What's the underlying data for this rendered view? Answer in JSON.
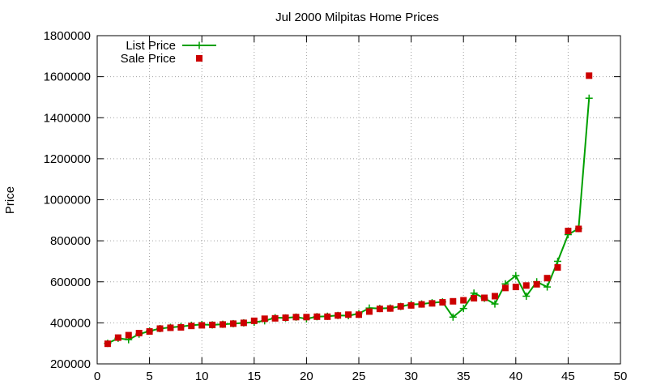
{
  "chart_data": {
    "type": "line",
    "title": "Jul 2000 Milpitas Home Prices",
    "xlabel": "",
    "ylabel": "Price",
    "xlim": [
      0,
      50
    ],
    "ylim": [
      200000,
      1800000
    ],
    "xticks": [
      0,
      5,
      10,
      15,
      20,
      25,
      30,
      35,
      40,
      45,
      50
    ],
    "yticks": [
      200000,
      400000,
      600000,
      800000,
      1000000,
      1200000,
      1400000,
      1600000,
      1800000
    ],
    "grid": true,
    "legend_position": "top-left",
    "series": [
      {
        "name": "List Price",
        "style": "line-with-plus-markers",
        "color": "#00a000",
        "x": [
          1,
          2,
          3,
          4,
          5,
          6,
          7,
          8,
          9,
          10,
          11,
          12,
          13,
          14,
          15,
          16,
          17,
          18,
          19,
          20,
          21,
          22,
          23,
          24,
          25,
          26,
          27,
          28,
          29,
          30,
          31,
          32,
          33,
          34,
          35,
          36,
          37,
          38,
          39,
          40,
          41,
          42,
          43,
          44,
          45,
          46,
          47
        ],
        "y": [
          300000,
          325000,
          318000,
          345000,
          360000,
          372000,
          378000,
          382000,
          388000,
          392000,
          390000,
          393000,
          396000,
          400000,
          403000,
          410000,
          425000,
          424000,
          428000,
          420000,
          430000,
          432000,
          436000,
          435000,
          445000,
          472000,
          470000,
          472000,
          480000,
          490000,
          492000,
          498000,
          502000,
          428000,
          470000,
          545000,
          520000,
          492000,
          590000,
          630000,
          530000,
          600000,
          575000,
          700000,
          830000,
          860000,
          1495000
        ]
      },
      {
        "name": "Sale Price",
        "style": "square-markers",
        "color": "#cc0000",
        "x": [
          1,
          2,
          3,
          4,
          5,
          6,
          7,
          8,
          9,
          10,
          11,
          12,
          13,
          14,
          15,
          16,
          17,
          18,
          19,
          20,
          21,
          22,
          23,
          24,
          25,
          26,
          27,
          28,
          29,
          30,
          31,
          32,
          33,
          34,
          35,
          36,
          37,
          38,
          39,
          40,
          41,
          42,
          43,
          44,
          45,
          46,
          47
        ],
        "y": [
          298000,
          328000,
          340000,
          350000,
          358000,
          372000,
          376000,
          378000,
          385000,
          388000,
          390000,
          392000,
          396000,
          400000,
          410000,
          420000,
          422000,
          425000,
          428000,
          428000,
          430000,
          430000,
          436000,
          440000,
          440000,
          455000,
          468000,
          470000,
          480000,
          485000,
          490000,
          495000,
          500000,
          505000,
          510000,
          520000,
          522000,
          530000,
          570000,
          575000,
          582000,
          588000,
          618000,
          670000,
          848000,
          858000,
          1605000
        ]
      }
    ]
  }
}
